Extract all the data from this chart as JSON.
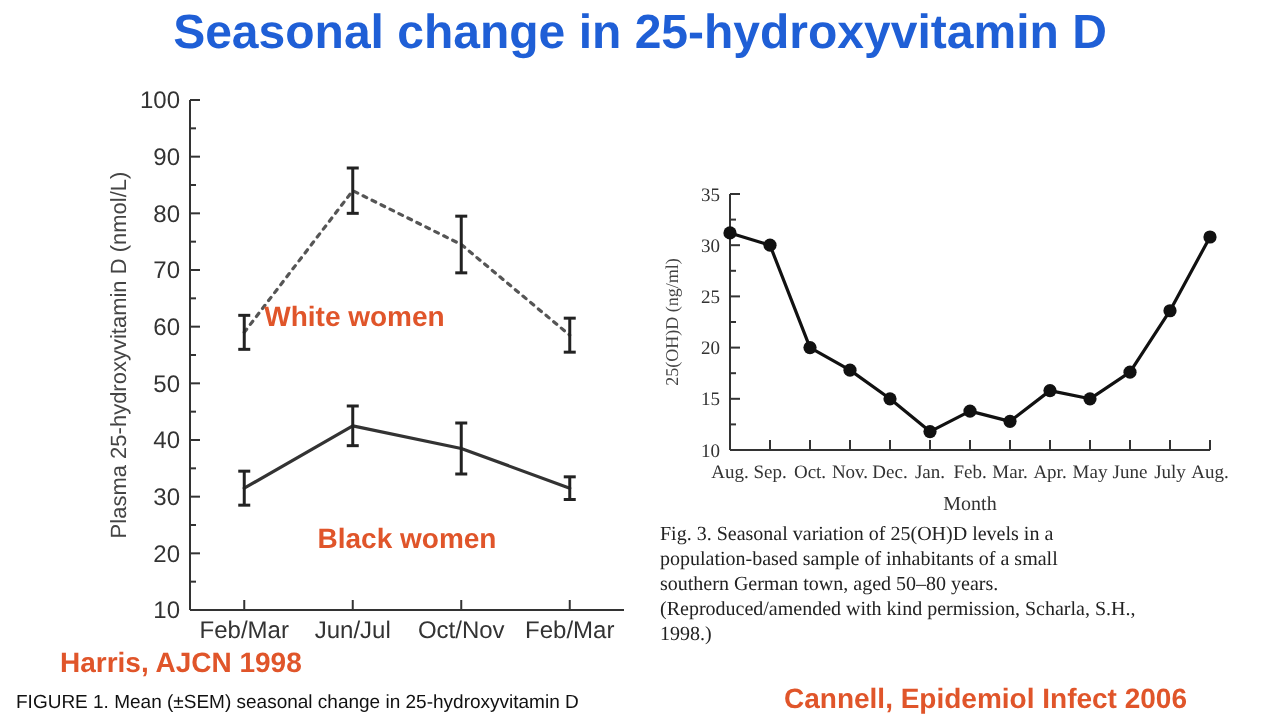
{
  "chart_data": [
    {
      "type": "line",
      "title": "Seasonal change in 25-hydroxyvitamin D",
      "ylabel": "Plasma 25-hydroxyvitamin D (nmol/L)",
      "categories": [
        "Feb/Mar",
        "Jun/Jul",
        "Oct/Nov",
        "Feb/Mar"
      ],
      "ylim": [
        10,
        100
      ],
      "yticks": [
        10,
        20,
        30,
        40,
        50,
        60,
        70,
        80,
        90,
        100
      ],
      "marker": "none",
      "series": [
        {
          "name": "White women",
          "color": "#555555",
          "line_style": "dotted",
          "values": [
            59,
            84,
            74.5,
            58.5
          ],
          "errors": [
            3,
            4,
            5,
            3
          ]
        },
        {
          "name": "Black women",
          "color": "#333333",
          "line_style": "solid",
          "values": [
            31.5,
            42.5,
            38.5,
            31.5
          ],
          "errors": [
            3,
            3.5,
            4.5,
            2
          ]
        }
      ],
      "annotations": [
        "Harris, AJCN 1998",
        "FIGURE 1. Mean (±SEM) seasonal change in 25-hydroxyvitamin D"
      ]
    },
    {
      "type": "line",
      "xlabel": "Month",
      "ylabel": "25(OH)D (ng/ml)",
      "categories": [
        "Aug.",
        "Sep.",
        "Oct.",
        "Nov.",
        "Dec.",
        "Jan.",
        "Feb.",
        "Mar.",
        "Apr.",
        "May",
        "June",
        "July",
        "Aug."
      ],
      "ylim": [
        10,
        35
      ],
      "yticks": [
        10,
        15,
        20,
        25,
        30,
        35
      ],
      "marker": "circle",
      "series": [
        {
          "color": "#111111",
          "values": [
            31.2,
            30,
            20,
            17.8,
            15,
            11.8,
            13.8,
            12.8,
            15.8,
            15,
            17.6,
            23.6,
            30.8
          ]
        }
      ],
      "annotations": [
        "Fig. 3. Seasonal variation of 25(OH)D levels in a population-based sample of inhabitants of a small southern German town, aged 50–80 years. (Reproduced/amended with kind permission, Scharla, S.H., 1998.)",
        "Cannell, Epidemiol Infect 2006"
      ]
    }
  ]
}
